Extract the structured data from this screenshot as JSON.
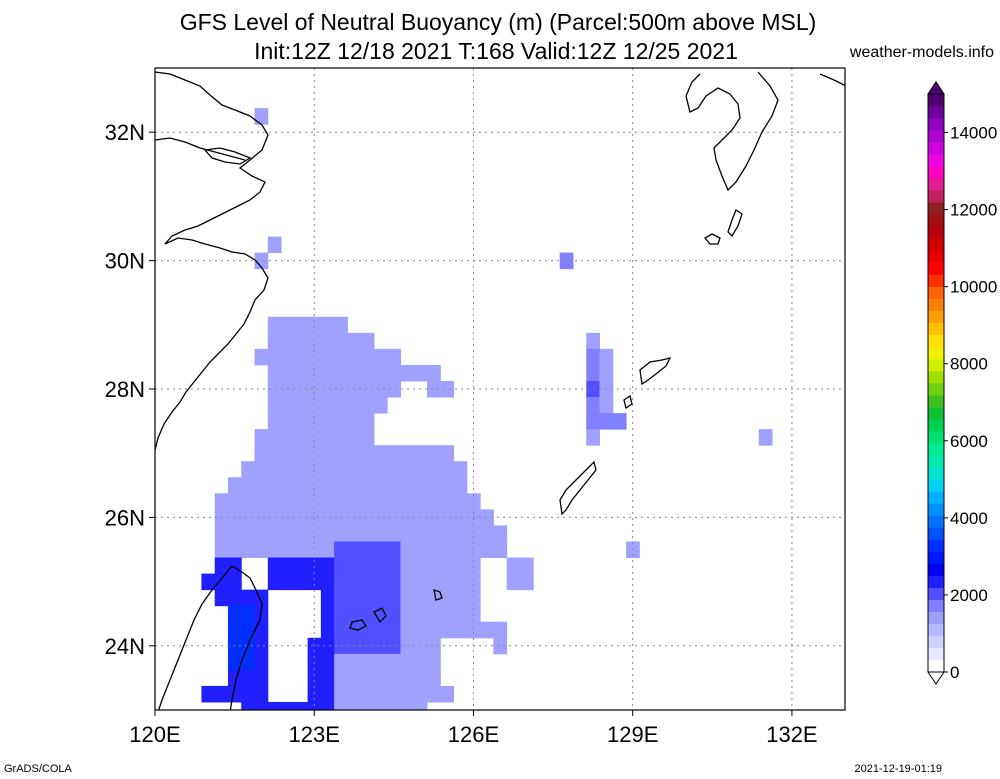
{
  "title_line1": "GFS Level of Neutral Buoyancy (m) (Parcel:500m above MSL)",
  "title_line2": "Init:12Z 12/18 2021 T:168 Valid:12Z 12/25 2021",
  "site": "weather-models.info",
  "footer_left": "GrADS/COLA",
  "footer_right": "2021-12-19-01:19",
  "map": {
    "lon_range": [
      120,
      133
    ],
    "lat_range": [
      23,
      33
    ],
    "lon_ticks": [
      {
        "value": 120,
        "label": "120E"
      },
      {
        "value": 123,
        "label": "123E"
      },
      {
        "value": 126,
        "label": "126E"
      },
      {
        "value": 129,
        "label": "129E"
      },
      {
        "value": 132,
        "label": "132E"
      }
    ],
    "lat_ticks": [
      {
        "value": 24,
        "label": "24N"
      },
      {
        "value": 26,
        "label": "26N"
      },
      {
        "value": 28,
        "label": "28N"
      },
      {
        "value": 30,
        "label": "30N"
      },
      {
        "value": 32,
        "label": "32N"
      }
    ]
  },
  "colorbar": {
    "labels": [
      "0",
      "2000",
      "4000",
      "6000",
      "8000",
      "10000",
      "12000",
      "14000"
    ],
    "colors": [
      "#ffffff",
      "#e8e8ff",
      "#d0d0ff",
      "#b8b8ff",
      "#a0a0ff",
      "#8080ff",
      "#5050ff",
      "#2020ff",
      "#0000f0",
      "#0018ff",
      "#0030ff",
      "#0050ff",
      "#0070ff",
      "#0090ff",
      "#00b0ff",
      "#00d0f0",
      "#00e0d0",
      "#00e8b0",
      "#00e890",
      "#00e070",
      "#00d050",
      "#10c030",
      "#40c020",
      "#70d010",
      "#a0e000",
      "#d0f000",
      "#f0f000",
      "#ffe000",
      "#ffc000",
      "#ffa000",
      "#ff8000",
      "#ff6000",
      "#ff3000",
      "#ff0000",
      "#e80000",
      "#d00000",
      "#b80010",
      "#a01010",
      "#902020",
      "#c02060",
      "#e02090",
      "#ff00c0",
      "#f000e0",
      "#d000e0",
      "#b000d0",
      "#9000c0",
      "#7000a0",
      "#500070"
    ]
  },
  "lnb_field": {
    "grid_lon_step": 0.25,
    "grid_lat_step": 0.25,
    "description_of_cells": "list of [lon, lat, value_m]",
    "cells": [
      [
        122.0,
        32.25,
        1500
      ],
      [
        122.25,
        30.25,
        1500
      ],
      [
        122.0,
        30.0,
        1500
      ],
      [
        127.75,
        30.0,
        1800
      ],
      [
        131.5,
        27.25,
        1500
      ],
      [
        129.0,
        25.5,
        1500
      ],
      [
        126.5,
        24.0,
        1500
      ],
      [
        128.25,
        28.75,
        1500
      ],
      [
        128.25,
        28.5,
        1600
      ],
      [
        128.5,
        28.5,
        1500
      ],
      [
        128.25,
        28.25,
        1700
      ],
      [
        128.5,
        28.25,
        1500
      ],
      [
        128.25,
        28.0,
        1900
      ],
      [
        128.5,
        28.0,
        1500
      ],
      [
        128.25,
        27.75,
        1800
      ],
      [
        128.5,
        27.75,
        1500
      ],
      [
        128.25,
        27.5,
        1700
      ],
      [
        128.5,
        27.5,
        1700
      ],
      [
        128.75,
        27.5,
        1600
      ],
      [
        128.25,
        27.25,
        1500
      ]
    ],
    "blob_description": "solid blue region over East China Sea 121-127E 23-29N"
  }
}
